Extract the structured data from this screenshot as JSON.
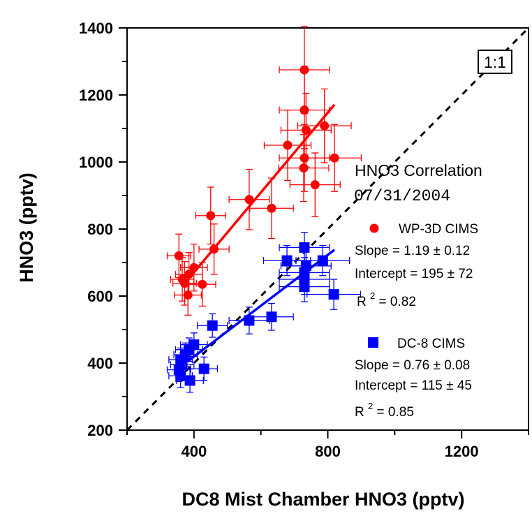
{
  "chart_data": {
    "type": "scatter",
    "xlabel": "DC8 Mist Chamber  HNO3  (pptv)",
    "ylabel": "HNO3  (pptv)",
    "xlim": [
      200,
      1400
    ],
    "ylim": [
      200,
      1400
    ],
    "x_ticks": [
      400,
      800,
      1200
    ],
    "y_ticks": [
      200,
      400,
      600,
      800,
      1000,
      1200,
      1400
    ],
    "grid": false,
    "reference_line": {
      "label": "1:1",
      "slope": 1,
      "intercept": 0,
      "style": "dashed",
      "color": "#000000"
    },
    "annotation": {
      "title_line1": "HNO3 Correlation",
      "title_line2": "07/31/2004"
    },
    "series": [
      {
        "name": "WP-3D CIMS",
        "color": "#ff0000",
        "marker": "circle",
        "slope_text": "Slope = 1.19 ± 0.12",
        "intercept_text": "Intercept = 195 ± 72",
        "r2_prefix": "R",
        "r2_sup": "2",
        "r2_value": " = 0.82",
        "fit": {
          "x": [
            380,
            820
          ],
          "y": [
            647,
            1171
          ]
        },
        "points": [
          {
            "x": 730,
            "y": 1275,
            "xerr": 75,
            "yerr": 130
          },
          {
            "x": 730,
            "y": 1155,
            "xerr": 75,
            "yerr": 115
          },
          {
            "x": 735,
            "y": 1095,
            "xerr": 75,
            "yerr": 110
          },
          {
            "x": 790,
            "y": 1108,
            "xerr": 80,
            "yerr": 110
          },
          {
            "x": 680,
            "y": 1050,
            "xerr": 70,
            "yerr": 105
          },
          {
            "x": 820,
            "y": 1012,
            "xerr": 80,
            "yerr": 100
          },
          {
            "x": 730,
            "y": 1012,
            "xerr": 75,
            "yerr": 100
          },
          {
            "x": 728,
            "y": 982,
            "xerr": 75,
            "yerr": 100
          },
          {
            "x": 762,
            "y": 932,
            "xerr": 75,
            "yerr": 95
          },
          {
            "x": 565,
            "y": 888,
            "xerr": 60,
            "yerr": 90
          },
          {
            "x": 632,
            "y": 862,
            "xerr": 65,
            "yerr": 90
          },
          {
            "x": 450,
            "y": 840,
            "xerr": 45,
            "yerr": 85
          },
          {
            "x": 460,
            "y": 740,
            "xerr": 45,
            "yerr": 75
          },
          {
            "x": 355,
            "y": 720,
            "xerr": 35,
            "yerr": 65
          },
          {
            "x": 400,
            "y": 685,
            "xerr": 40,
            "yerr": 70
          },
          {
            "x": 385,
            "y": 665,
            "xerr": 40,
            "yerr": 65
          },
          {
            "x": 365,
            "y": 650,
            "xerr": 35,
            "yerr": 65
          },
          {
            "x": 372,
            "y": 638,
            "xerr": 35,
            "yerr": 65
          },
          {
            "x": 425,
            "y": 635,
            "xerr": 40,
            "yerr": 65
          },
          {
            "x": 382,
            "y": 603,
            "xerr": 40,
            "yerr": 60
          }
        ]
      },
      {
        "name": "DC-8 CIMS",
        "color": "#0000ff",
        "marker": "square",
        "slope_text": "Slope = 0.76 ± 0.08",
        "intercept_text": "Intercept = 115 ± 45",
        "r2_prefix": "R",
        "r2_sup": "2",
        "r2_value": " = 0.85",
        "fit": {
          "x": [
            380,
            820
          ],
          "y": [
            404,
            738
          ]
        },
        "points": [
          {
            "x": 730,
            "y": 745,
            "xerr": 75,
            "yerr": 45
          },
          {
            "x": 678,
            "y": 706,
            "xerr": 70,
            "yerr": 45
          },
          {
            "x": 785,
            "y": 706,
            "xerr": 80,
            "yerr": 45
          },
          {
            "x": 735,
            "y": 690,
            "xerr": 75,
            "yerr": 45
          },
          {
            "x": 730,
            "y": 670,
            "xerr": 75,
            "yerr": 45
          },
          {
            "x": 730,
            "y": 650,
            "xerr": 75,
            "yerr": 45
          },
          {
            "x": 730,
            "y": 628,
            "xerr": 75,
            "yerr": 45
          },
          {
            "x": 818,
            "y": 605,
            "xerr": 80,
            "yerr": 45
          },
          {
            "x": 632,
            "y": 538,
            "xerr": 65,
            "yerr": 40
          },
          {
            "x": 565,
            "y": 527,
            "xerr": 60,
            "yerr": 40
          },
          {
            "x": 455,
            "y": 512,
            "xerr": 45,
            "yerr": 35
          },
          {
            "x": 400,
            "y": 455,
            "xerr": 40,
            "yerr": 35
          },
          {
            "x": 385,
            "y": 440,
            "xerr": 40,
            "yerr": 35
          },
          {
            "x": 375,
            "y": 425,
            "xerr": 35,
            "yerr": 35
          },
          {
            "x": 360,
            "y": 410,
            "xerr": 35,
            "yerr": 35
          },
          {
            "x": 365,
            "y": 395,
            "xerr": 35,
            "yerr": 35
          },
          {
            "x": 355,
            "y": 380,
            "xerr": 35,
            "yerr": 35
          },
          {
            "x": 430,
            "y": 383,
            "xerr": 40,
            "yerr": 35
          },
          {
            "x": 360,
            "y": 362,
            "xerr": 35,
            "yerr": 35
          },
          {
            "x": 388,
            "y": 348,
            "xerr": 40,
            "yerr": 35
          }
        ]
      }
    ]
  }
}
